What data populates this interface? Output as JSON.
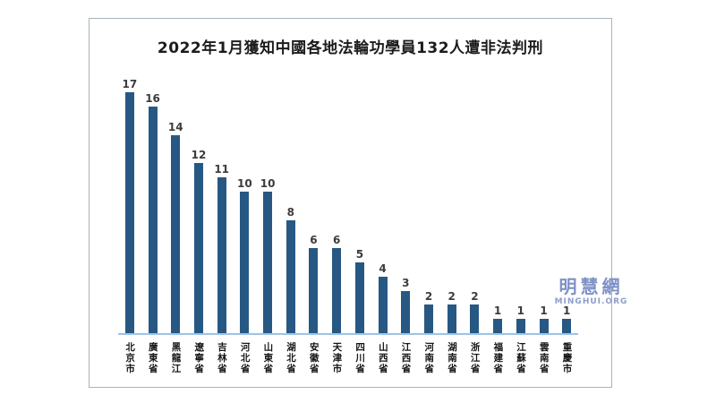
{
  "chart_data": {
    "type": "bar",
    "title": "2022年1月獲知中國各地法輪功學員132人遭非法判刑",
    "categories": [
      "北京市",
      "廣東省",
      "黑龍江",
      "遼寧省",
      "吉林省",
      "河北省",
      "山東省",
      "湖北省",
      "安徽省",
      "天津市",
      "四川省",
      "山西省",
      "江西省",
      "河南省",
      "湖南省",
      "浙江省",
      "福建省",
      "江蘇省",
      "雲南省",
      "重慶市"
    ],
    "values": [
      17,
      16,
      14,
      12,
      11,
      10,
      10,
      8,
      6,
      6,
      5,
      4,
      3,
      2,
      2,
      2,
      1,
      1,
      1,
      1
    ],
    "total": 132,
    "xlabel": "",
    "ylabel": "",
    "ylim": [
      0,
      17
    ],
    "grid": false,
    "legend": false,
    "data_labels": true,
    "bar_color": "#275883",
    "axis_line_color": "#9dc3e6",
    "x_labels_orientation": "vertical"
  },
  "watermark": {
    "cjk": "明慧網",
    "latin": "MINGHUI.ORG",
    "cjk_color": "#7e91c6",
    "latin_color": "#8e9ec9"
  }
}
